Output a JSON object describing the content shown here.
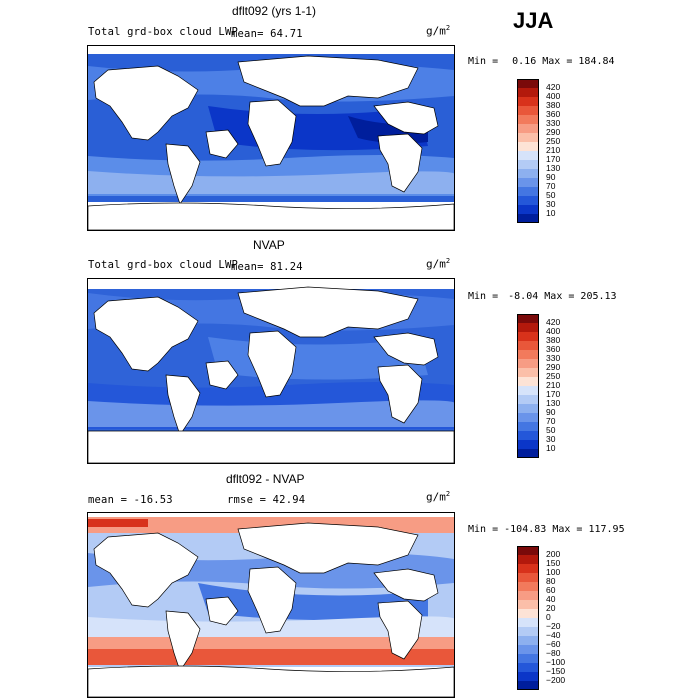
{
  "season": "JJA",
  "units_base": "g/m",
  "units_exp": "2",
  "panels": [
    {
      "title": "dflt092 (yrs 1-1)",
      "subtitle": "Total grd-box cloud LWP",
      "stat_left": "mean=  64.71",
      "stat_right": "",
      "min_label": "Min =",
      "min_value": "0.16",
      "max_label": "Max =",
      "max_value": "184.84",
      "levels": [
        "420",
        "400",
        "380",
        "360",
        "330",
        "290",
        "250",
        "210",
        "170",
        "130",
        "90",
        "70",
        "50",
        "30",
        "10"
      ],
      "colors": [
        "#7a0a0a",
        "#b3190c",
        "#d8321b",
        "#e9573a",
        "#f27a5c",
        "#f79c84",
        "#fbbfa9",
        "#fde3d6",
        "#d6e3fa",
        "#b3cbf5",
        "#8db0ef",
        "#6a94ea",
        "#4476e2",
        "#2457d9",
        "#0b36c8",
        "#001e9c"
      ]
    },
    {
      "title": "NVAP",
      "subtitle": "Total grd-box cloud LWP",
      "stat_left": "mean=  81.24",
      "stat_right": "",
      "min_label": "Min =",
      "min_value": "-8.04",
      "max_label": "Max =",
      "max_value": "205.13",
      "levels": [
        "420",
        "400",
        "380",
        "360",
        "330",
        "290",
        "250",
        "210",
        "170",
        "130",
        "90",
        "70",
        "50",
        "30",
        "10"
      ],
      "colors": [
        "#7a0a0a",
        "#b3190c",
        "#d8321b",
        "#e9573a",
        "#f27a5c",
        "#f79c84",
        "#fbbfa9",
        "#fde3d6",
        "#d6e3fa",
        "#b3cbf5",
        "#8db0ef",
        "#6a94ea",
        "#4476e2",
        "#2457d9",
        "#0b36c8",
        "#001e9c"
      ]
    },
    {
      "title": "dflt092 - NVAP",
      "subtitle": "",
      "stat_left": "mean = -16.53",
      "stat_right": "rmse =  42.94",
      "min_label": "Min =",
      "min_value": "-104.83",
      "max_label": "Max =",
      "max_value": "117.95",
      "levels": [
        "200",
        "150",
        "100",
        "80",
        "60",
        "40",
        "20",
        "0",
        "−20",
        "−40",
        "−60",
        "−80",
        "−100",
        "−150",
        "−200"
      ],
      "colors": [
        "#7a0a0a",
        "#b3190c",
        "#d8321b",
        "#e9573a",
        "#f27a5c",
        "#f79c84",
        "#fbbfa9",
        "#fde3d6",
        "#d6e3fa",
        "#b3cbf5",
        "#8db0ef",
        "#6a94ea",
        "#4476e2",
        "#2457d9",
        "#0b36c8",
        "#001e9c"
      ]
    }
  ]
}
